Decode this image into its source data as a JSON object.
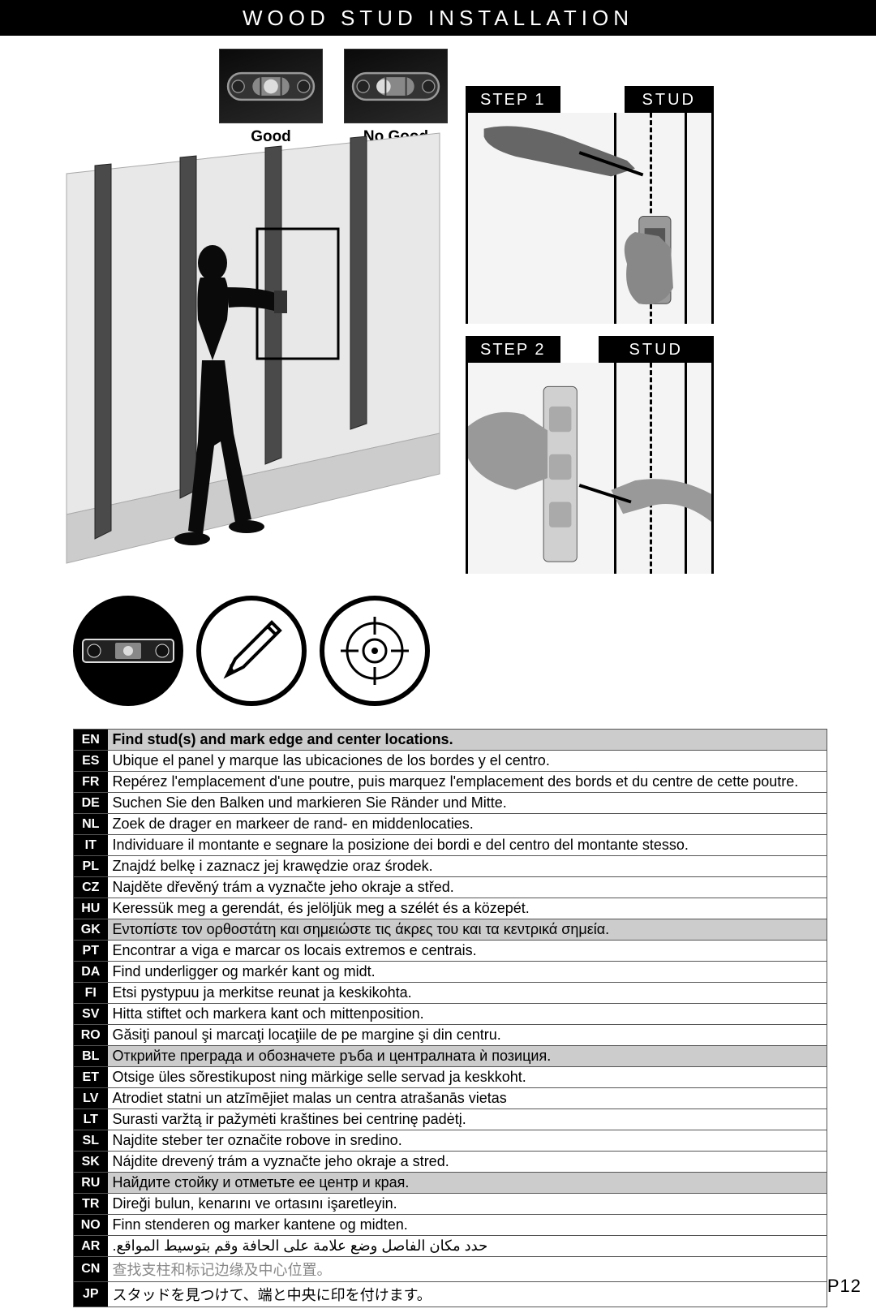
{
  "title": "WOOD STUD INSTALLATION",
  "level_photos": [
    {
      "label": "Good",
      "centered": true
    },
    {
      "label": "No Good",
      "centered": false
    }
  ],
  "steps": [
    {
      "step_label": "STEP 1",
      "stud_label": "STUD"
    },
    {
      "step_label": "STEP 2",
      "stud_label": "STUD"
    }
  ],
  "tools": [
    "level",
    "pencil",
    "stud-finder"
  ],
  "translations": [
    {
      "lang": "EN",
      "text": "Find stud(s) and mark edge and center locations.",
      "header": true
    },
    {
      "lang": "ES",
      "text": "Ubique el panel y marque las ubicaciones de los bordes y el centro."
    },
    {
      "lang": "FR",
      "text": "Repérez l'emplacement d'une poutre, puis marquez l'emplacement des bords et du centre de cette poutre."
    },
    {
      "lang": "DE",
      "text": "Suchen Sie den Balken und markieren Sie Ränder und Mitte."
    },
    {
      "lang": "NL",
      "text": "Zoek de drager en markeer de rand- en middenlocaties."
    },
    {
      "lang": "IT",
      "text": "Individuare il montante e segnare la posizione dei bordi e del centro del montante stesso."
    },
    {
      "lang": "PL",
      "text": "Znajdź belkę i zaznacz jej krawędzie oraz środek."
    },
    {
      "lang": "CZ",
      "text": "Najděte dřevěný trám a vyznačte jeho okraje a střed."
    },
    {
      "lang": "HU",
      "text": "Keressük meg a gerendát, és jelöljük meg a szélét és a közepét."
    },
    {
      "lang": "GK",
      "text": "Εντοπίστε τον ορθοστάτη και σημειώστε τις άκρες του και τα κεντρικά σημεία.",
      "alt": true
    },
    {
      "lang": "PT",
      "text": "Encontrar a viga e marcar os locais extremos e centrais."
    },
    {
      "lang": "DA",
      "text": "Find underligger og markér kant og midt."
    },
    {
      "lang": "FI",
      "text": "Etsi pystypuu ja merkitse reunat ja keskikohta."
    },
    {
      "lang": "SV",
      "text": "Hitta stiftet och markera kant och mittenposition."
    },
    {
      "lang": "RO",
      "text": "Găsiţi panoul şi marcaţi locaţiile de pe margine şi din centru."
    },
    {
      "lang": "BL",
      "text": "Открийте преграда и обозначете ръба и централната ѝ позиция.",
      "alt": true
    },
    {
      "lang": "ET",
      "text": "Otsige üles sõrestikupost ning märkige selle servad ja keskkoht."
    },
    {
      "lang": "LV",
      "text": "Atrodiet statni un atzīmējiet malas un centra atrašanās vietas"
    },
    {
      "lang": "LT",
      "text": "Surasti varžtą ir pažymėti kraštines bei centrinę padėtį."
    },
    {
      "lang": "SL",
      "text": "Najdite steber ter označite robove in sredino."
    },
    {
      "lang": "SK",
      "text": "Nájdite drevený trám a vyznačte jeho okraje a stred."
    },
    {
      "lang": "RU",
      "text": "Найдите стойку и отметьте ее центр и края.",
      "alt": true
    },
    {
      "lang": "TR",
      "text": "Direği bulun, kenarını ve ortasını işaretleyin."
    },
    {
      "lang": "NO",
      "text": "Finn stenderen og marker kantene og midten."
    },
    {
      "lang": "AR",
      "text": "حدد مكان الفاصل وضع علامة على الحافة وقم بتوسيط المواقع.",
      "ar": true
    },
    {
      "lang": "CN",
      "text": "查找支柱和标记边缘及中心位置。",
      "cn": true
    },
    {
      "lang": "JP",
      "text": "スタッドを見つけて、端と中央に印を付けます。"
    }
  ],
  "page_number": "P12",
  "colors": {
    "black": "#000000",
    "gray": "#cccccc",
    "dark_gray": "#555555"
  }
}
